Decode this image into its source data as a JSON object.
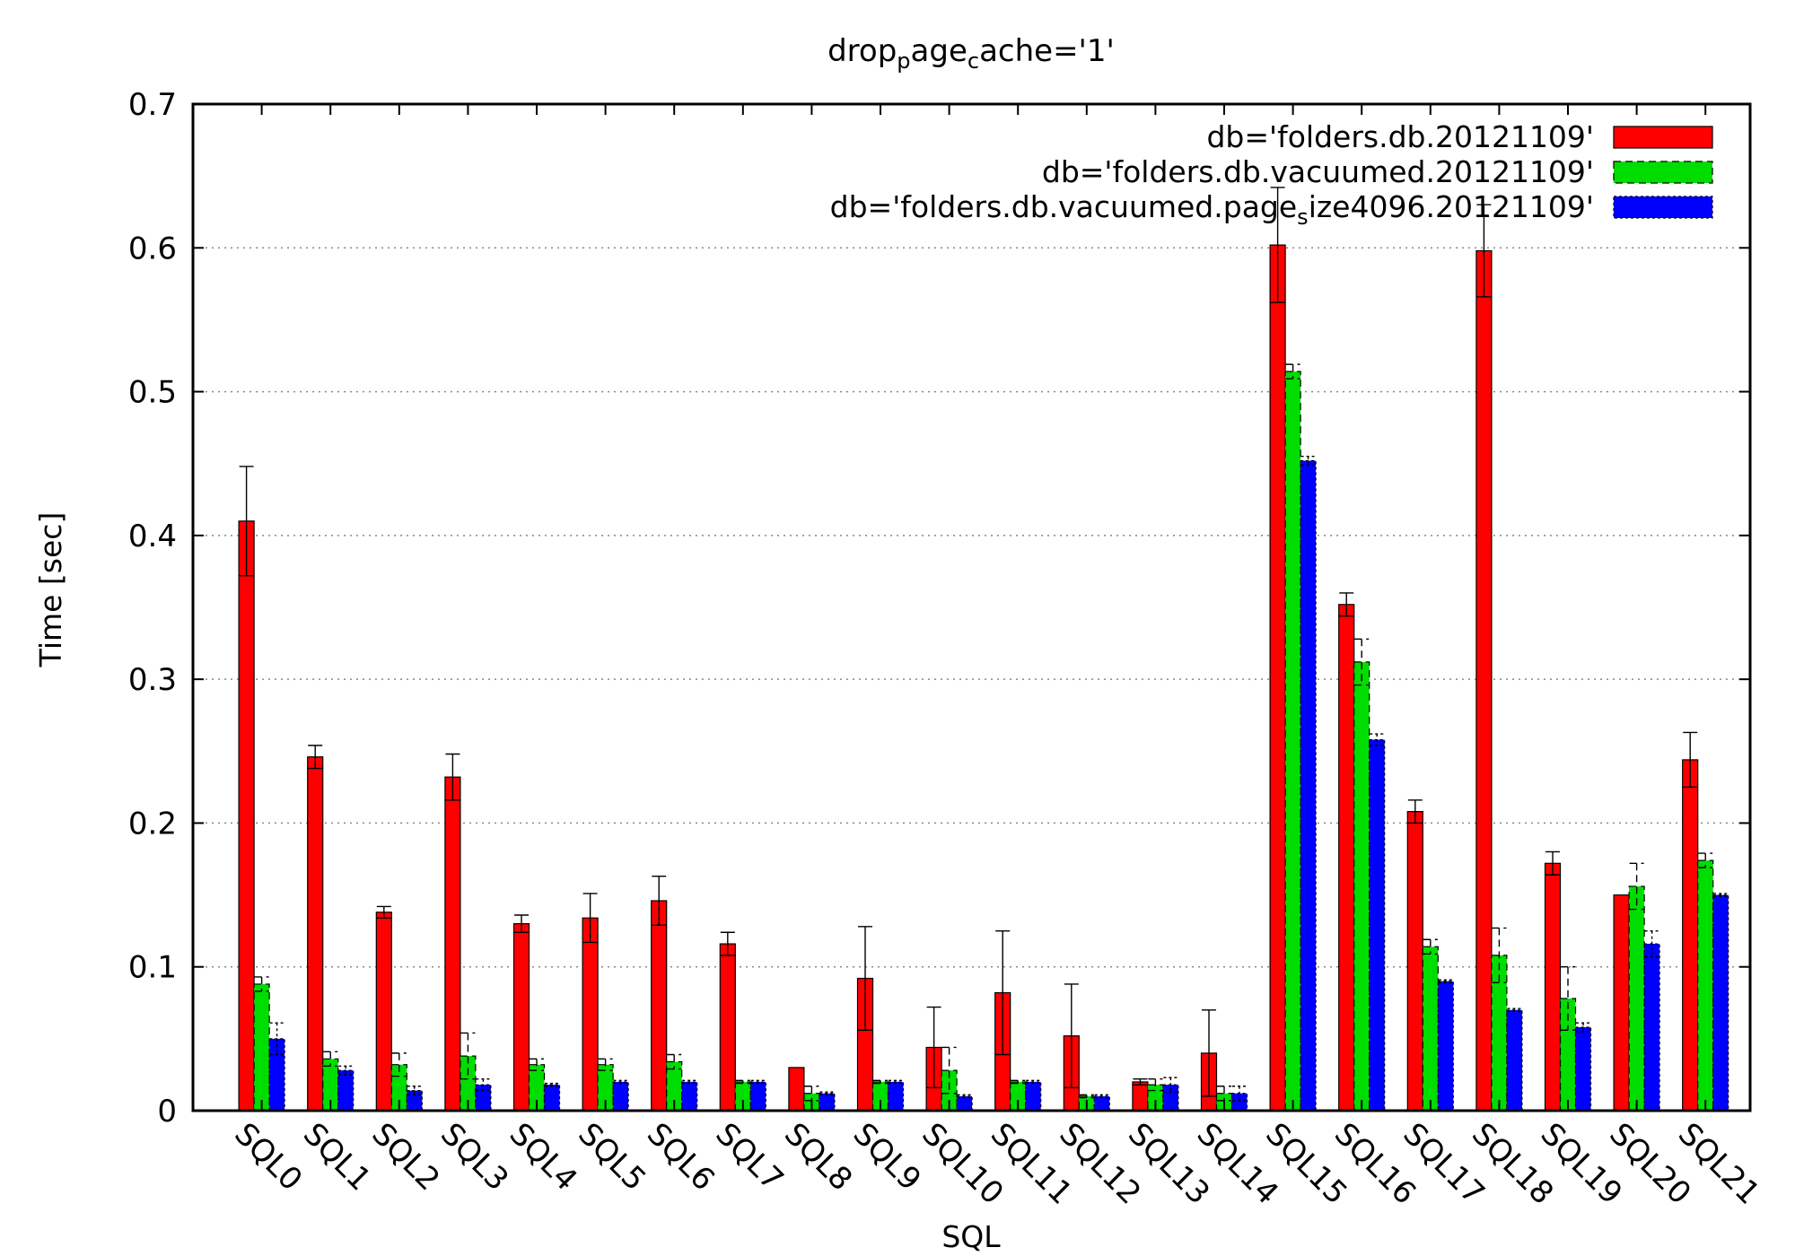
{
  "chart_data": {
    "type": "bar",
    "title": "drop_page_cache='1'",
    "xlabel": "SQL",
    "ylabel": "Time [sec]",
    "ylim": [
      0,
      0.7
    ],
    "yticks": [
      "0",
      "0.1",
      "0.2",
      "0.3",
      "0.4",
      "0.5",
      "0.6",
      "0.7"
    ],
    "grid": "horizontal dotted",
    "legend_position": "top-right",
    "error_bars": true,
    "categories": [
      "SQL0",
      "SQL1",
      "SQL2",
      "SQL3",
      "SQL4",
      "SQL5",
      "SQL6",
      "SQL7",
      "SQL8",
      "SQL9",
      "SQL10",
      "SQL11",
      "SQL12",
      "SQL13",
      "SQL14",
      "SQL15",
      "SQL16",
      "SQL17",
      "SQL18",
      "SQL19",
      "SQL20",
      "SQL21"
    ],
    "series": [
      {
        "name": "db='folders.db.20121109'",
        "color": "#ff0000",
        "values": [
          0.41,
          0.246,
          0.138,
          0.232,
          0.13,
          0.134,
          0.146,
          0.116,
          0.03,
          0.092,
          0.044,
          0.082,
          0.052,
          0.02,
          0.04,
          0.602,
          0.352,
          0.208,
          0.598,
          0.172,
          0.15,
          0.244
        ],
        "errors": [
          0.038,
          0.008,
          0.004,
          0.016,
          0.006,
          0.017,
          0.017,
          0.008,
          0.0,
          0.036,
          0.028,
          0.043,
          0.036,
          0.002,
          0.03,
          0.04,
          0.008,
          0.008,
          0.032,
          0.008,
          0.0,
          0.019
        ]
      },
      {
        "name": "db='folders.db.vacuumed.20121109'",
        "color": "#00dd00",
        "values": [
          0.088,
          0.036,
          0.032,
          0.038,
          0.032,
          0.032,
          0.034,
          0.02,
          0.012,
          0.02,
          0.028,
          0.02,
          0.01,
          0.018,
          0.012,
          0.514,
          0.312,
          0.114,
          0.108,
          0.078,
          0.156,
          0.174
        ],
        "errors": [
          0.005,
          0.005,
          0.008,
          0.016,
          0.004,
          0.004,
          0.005,
          0.001,
          0.005,
          0.001,
          0.016,
          0.001,
          0.001,
          0.004,
          0.005,
          0.005,
          0.016,
          0.005,
          0.019,
          0.022,
          0.016,
          0.005
        ]
      },
      {
        "name": "db='folders.db.vacuumed.page_size4096.20121109'",
        "color": "#0000ff",
        "values": [
          0.05,
          0.028,
          0.014,
          0.018,
          0.018,
          0.02,
          0.02,
          0.02,
          0.012,
          0.02,
          0.01,
          0.02,
          0.01,
          0.018,
          0.012,
          0.452,
          0.258,
          0.09,
          0.07,
          0.058,
          0.116,
          0.15
        ],
        "errors": [
          0.011,
          0.003,
          0.003,
          0.004,
          0.001,
          0.001,
          0.001,
          0.001,
          0.001,
          0.001,
          0.001,
          0.001,
          0.001,
          0.005,
          0.005,
          0.003,
          0.004,
          0.001,
          0.001,
          0.003,
          0.009,
          0.001
        ]
      }
    ]
  }
}
